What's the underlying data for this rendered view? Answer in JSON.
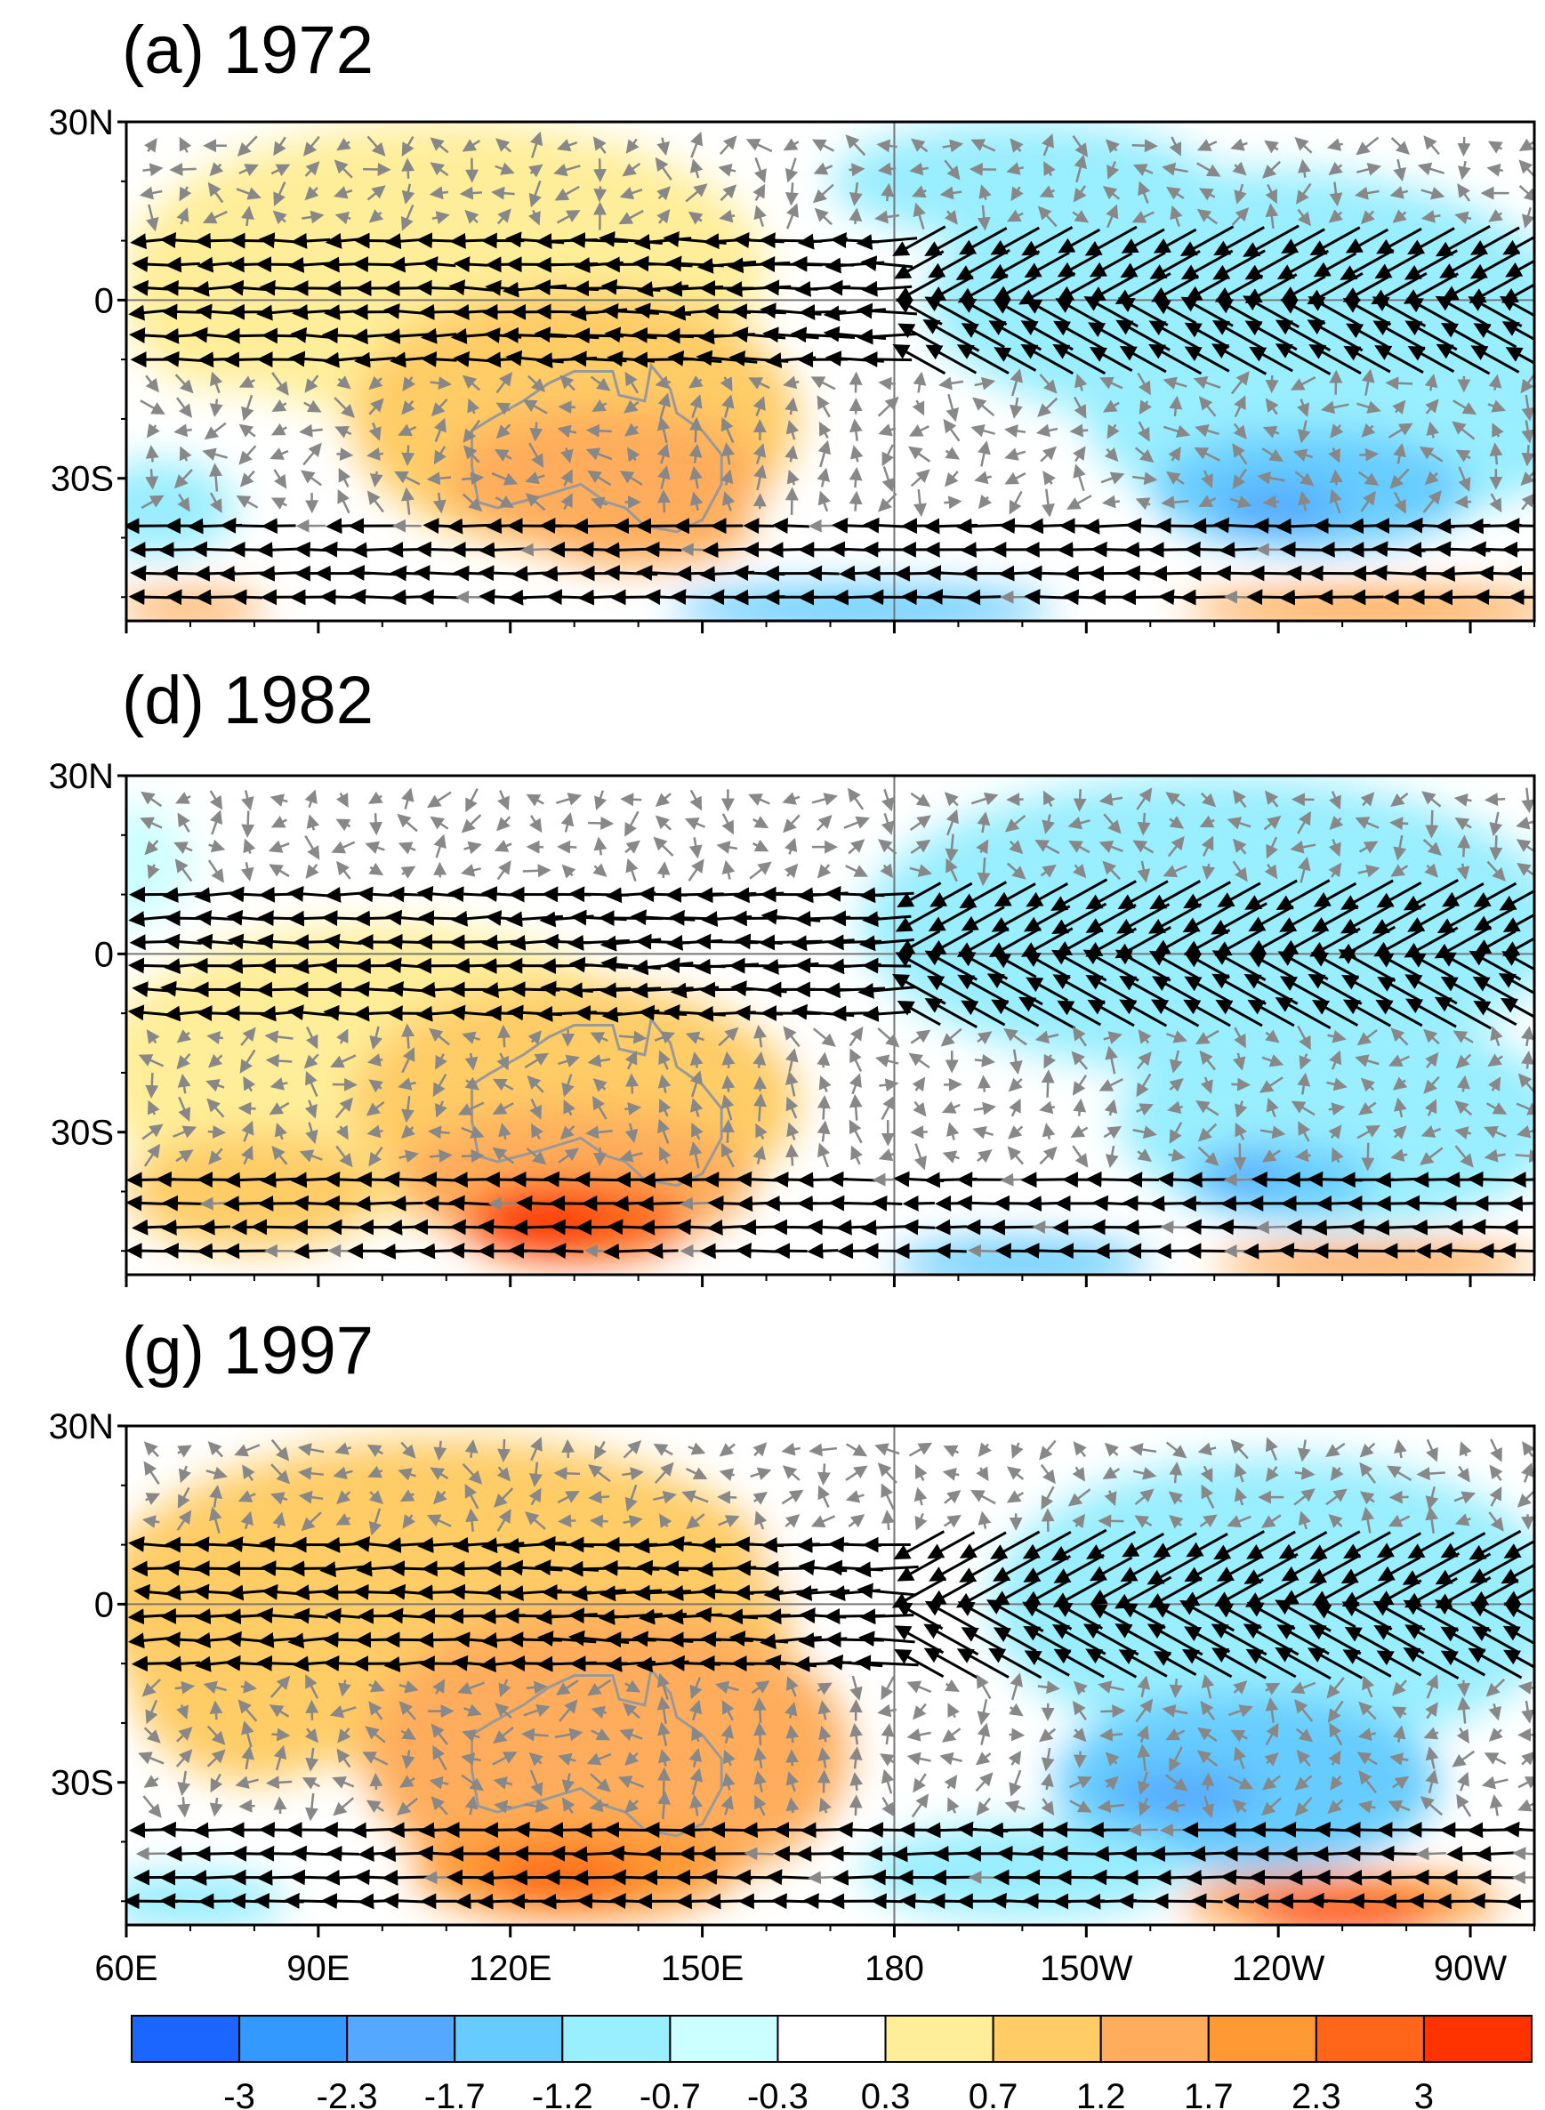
{
  "figure": {
    "panels": [
      {
        "id": "a",
        "title": "(a) 1972"
      },
      {
        "id": "d",
        "title": "(d) 1982"
      },
      {
        "id": "g",
        "title": "(g) 1997"
      }
    ],
    "y_ticks": [
      "30N",
      "0",
      "30S"
    ],
    "x_ticks": [
      "60E",
      "90E",
      "120E",
      "150E",
      "180",
      "150W",
      "120W",
      "90W"
    ],
    "colorbar": {
      "labels": [
        "-3",
        "-2.3",
        "-1.7",
        "-1.2",
        "-0.7",
        "-0.3",
        "0.3",
        "0.7",
        "1.2",
        "1.7",
        "2.3",
        "3"
      ],
      "colors": [
        "#1a66ff",
        "#3399ff",
        "#55a8ff",
        "#66ccff",
        "#99eeff",
        "#ccffff",
        "#ffffff",
        "#ffee99",
        "#ffcc66",
        "#ffad5c",
        "#ff9933",
        "#ff6619",
        "#ff3300"
      ]
    }
  }
}
